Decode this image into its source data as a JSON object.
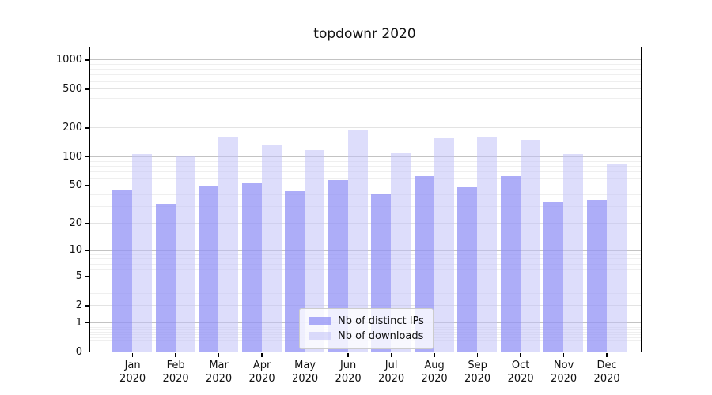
{
  "chart_data": {
    "type": "bar",
    "title": "topdownr 2020",
    "categories": [
      "Jan",
      "Feb",
      "Mar",
      "Apr",
      "May",
      "Jun",
      "Jul",
      "Aug",
      "Sep",
      "Oct",
      "Nov",
      "Dec"
    ],
    "xtick_second_line": "2020",
    "series": [
      {
        "name": "Nb of distinct IPs",
        "color_rgba": "rgba(145,145,245,0.75)",
        "color_hex": "#a6a6f1",
        "values": [
          44,
          32,
          50,
          53,
          43,
          57,
          41,
          62,
          48,
          62,
          33,
          35
        ]
      },
      {
        "name": "Nb of downloads",
        "color_rgba": "rgba(193,193,248,0.55)",
        "color_hex": "#dcdcfa",
        "values": [
          105,
          102,
          157,
          130,
          116,
          185,
          107,
          155,
          161,
          149,
          106,
          85
        ]
      }
    ],
    "yscale": "log1p",
    "ylim": [
      0,
      1330
    ],
    "yticks": [
      0,
      1,
      2,
      5,
      10,
      20,
      50,
      100,
      200,
      500,
      1000
    ],
    "y_major_gridlines": [
      1,
      10,
      100,
      1000
    ],
    "grid": "on",
    "legend_position": "lower center",
    "frame_color": "#000000",
    "background_color": "#ffffff"
  }
}
